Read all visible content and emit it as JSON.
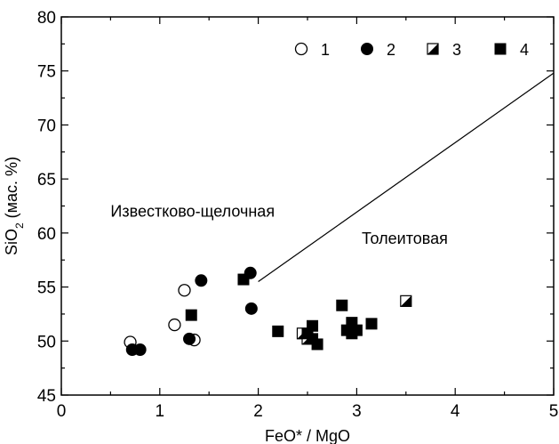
{
  "chart_data": {
    "type": "scatter",
    "title": "",
    "xlabel": "FeO* / MgO",
    "ylabel": "SiO",
    "ylabel_sub": "2",
    "ylabel_suffix": " (мас. %)",
    "xlim": [
      0,
      5
    ],
    "ylim": [
      45,
      80
    ],
    "x_ticks": [
      0,
      1,
      2,
      3,
      4,
      5
    ],
    "y_ticks": [
      45,
      50,
      55,
      60,
      65,
      70,
      75,
      80
    ],
    "grid": false,
    "legend_position": "top-right",
    "divider_line": {
      "points": [
        [
          2.0,
          55.5
        ],
        [
          5.0,
          74.8
        ]
      ]
    },
    "region_labels": [
      {
        "text": "Известково-щелочная",
        "x": 0.5,
        "y": 61.5
      },
      {
        "text": "Толеитовая",
        "x": 3.05,
        "y": 59.0
      }
    ],
    "series": [
      {
        "name": "1",
        "marker": "open-circle",
        "x": [
          0.7,
          1.15,
          1.25,
          1.35
        ],
        "y": [
          49.9,
          51.5,
          54.7,
          50.1
        ]
      },
      {
        "name": "2",
        "marker": "filled-circle",
        "x": [
          0.72,
          0.8,
          1.3,
          1.42,
          1.93,
          1.92
        ],
        "y": [
          49.2,
          49.2,
          50.2,
          55.6,
          53.0,
          56.3
        ]
      },
      {
        "name": "3",
        "marker": "half-square",
        "x": [
          2.45,
          2.5,
          3.5
        ],
        "y": [
          50.7,
          50.2,
          53.7
        ]
      },
      {
        "name": "4",
        "marker": "filled-square",
        "x": [
          1.32,
          1.85,
          2.2,
          2.5,
          2.55,
          2.55,
          2.6,
          2.85,
          2.9,
          2.95,
          2.95,
          3.0,
          3.15
        ],
        "y": [
          52.4,
          55.7,
          50.9,
          50.7,
          51.4,
          50.2,
          49.7,
          53.3,
          51.0,
          51.7,
          50.7,
          51.0,
          51.6
        ]
      }
    ]
  }
}
